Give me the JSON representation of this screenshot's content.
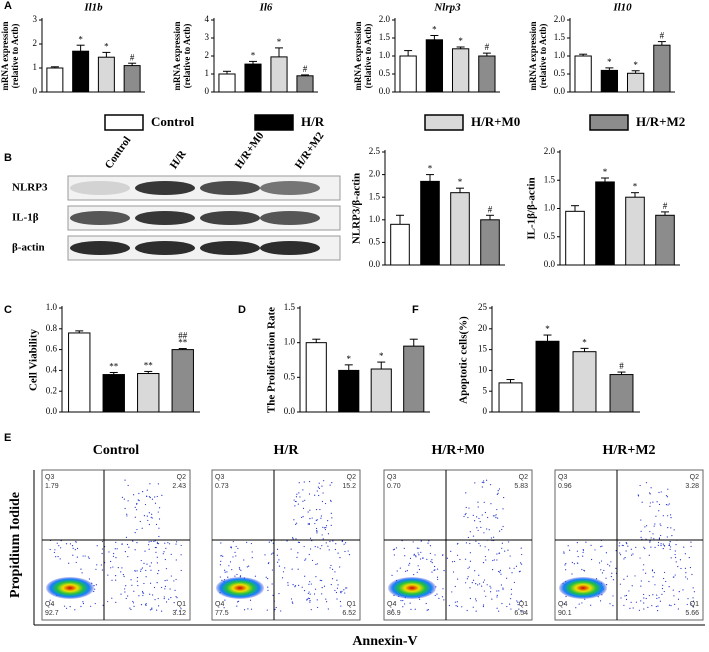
{
  "legend": [
    {
      "name": "Control",
      "color": "#ffffff"
    },
    {
      "name": "H/R",
      "color": "#000000"
    },
    {
      "name": "H/R+M0",
      "color": "#d9d9d9"
    },
    {
      "name": "H/R+M2",
      "color": "#8c8c8c"
    }
  ],
  "chart_data": [
    {
      "type": "bar",
      "panel": "A",
      "title": "Il1b",
      "italic_title": true,
      "ylabel": [
        "mRNA expression",
        "(relative to Actb)"
      ],
      "values": [
        1.0,
        1.7,
        1.45,
        1.1
      ],
      "errors": [
        0.05,
        0.25,
        0.2,
        0.1
      ],
      "significance": [
        [],
        [
          "*"
        ],
        [
          "*"
        ],
        [
          "#"
        ]
      ],
      "ylim": [
        0,
        3
      ],
      "yticks": [
        0,
        1,
        2,
        3
      ]
    },
    {
      "type": "bar",
      "title": "Il6",
      "italic_title": true,
      "ylabel": [
        "mRNA expression",
        "(relative to Actb)"
      ],
      "values": [
        1.0,
        1.55,
        1.95,
        0.9
      ],
      "errors": [
        0.15,
        0.15,
        0.5,
        0.05
      ],
      "significance": [
        [],
        [
          "*"
        ],
        [
          "*"
        ],
        [
          "#"
        ]
      ],
      "ylim": [
        0,
        4
      ],
      "yticks": [
        0,
        1,
        2,
        3,
        4
      ]
    },
    {
      "type": "bar",
      "title": "Nlrp3",
      "italic_title": true,
      "ylabel": [
        "mRNA expression",
        "(relative to Actb)"
      ],
      "values": [
        1.0,
        1.45,
        1.2,
        1.0
      ],
      "errors": [
        0.15,
        0.12,
        0.05,
        0.08
      ],
      "significance": [
        [],
        [
          "*"
        ],
        [
          "*"
        ],
        [
          "#"
        ]
      ],
      "ylim": [
        0,
        2
      ],
      "yticks": [
        {
          "value": 0,
          "label": "0.0"
        },
        {
          "value": 0.5,
          "label": "0.5"
        },
        {
          "value": 1,
          "label": "1.0"
        },
        {
          "value": 1.5,
          "label": "1.5"
        },
        {
          "value": 2,
          "label": "2.0"
        }
      ]
    },
    {
      "type": "bar",
      "title": "Il10",
      "italic_title": true,
      "ylabel": [
        "mRNA expression",
        "(relative to Actb)"
      ],
      "values": [
        1.0,
        0.6,
        0.52,
        1.3
      ],
      "errors": [
        0.05,
        0.07,
        0.07,
        0.1
      ],
      "significance": [
        [],
        [
          "*"
        ],
        [
          "*"
        ],
        [
          "#"
        ]
      ],
      "ylim": [
        0,
        2
      ],
      "yticks": [
        {
          "value": 0,
          "label": "0.0"
        },
        {
          "value": 0.5,
          "label": "0.5"
        },
        {
          "value": 1,
          "label": "1.0"
        },
        {
          "value": 1.5,
          "label": "1.5"
        },
        {
          "value": 2,
          "label": "2.0"
        }
      ]
    },
    {
      "type": "bar",
      "ylabel": [
        "NLRP3/β-actin"
      ],
      "values": [
        0.9,
        1.85,
        1.6,
        1.0
      ],
      "errors": [
        0.2,
        0.15,
        0.1,
        0.1
      ],
      "significance": [
        [],
        [
          "*"
        ],
        [
          "*"
        ],
        [
          "#"
        ]
      ],
      "ylim": [
        0,
        2.5
      ],
      "yticks": [
        {
          "value": 0,
          "label": "0.0"
        },
        {
          "value": 0.5,
          "label": "0.5"
        },
        {
          "value": 1,
          "label": "1.0"
        },
        {
          "value": 1.5,
          "label": "1.5"
        },
        {
          "value": 2,
          "label": "2.0"
        },
        {
          "value": 2.5,
          "label": "2.5"
        }
      ]
    },
    {
      "type": "bar",
      "ylabel": [
        "IL-1β/β-actin"
      ],
      "values": [
        0.95,
        1.47,
        1.2,
        0.88
      ],
      "errors": [
        0.1,
        0.07,
        0.08,
        0.06
      ],
      "significance": [
        [],
        [
          "*"
        ],
        [
          "*"
        ],
        [
          "#"
        ]
      ],
      "ylim": [
        0,
        2
      ],
      "yticks": [
        {
          "value": 0,
          "label": "0.0"
        },
        {
          "value": 0.5,
          "label": "0.5"
        },
        {
          "value": 1,
          "label": "1.0"
        },
        {
          "value": 1.5,
          "label": "1.5"
        },
        {
          "value": 2,
          "label": "2.0"
        }
      ]
    },
    {
      "type": "bar",
      "panel": "C",
      "ylabel": [
        "Cell Viability"
      ],
      "values": [
        0.76,
        0.36,
        0.37,
        0.6
      ],
      "errors": [
        0.02,
        0.02,
        0.02,
        0.01
      ],
      "significance": [
        [],
        [
          "**"
        ],
        [
          "**"
        ],
        [
          "##",
          "**"
        ]
      ],
      "ylim": [
        0,
        1
      ],
      "yticks": [
        {
          "value": 0,
          "label": "0.0"
        },
        {
          "value": 0.2,
          "label": "0.2"
        },
        {
          "value": 0.4,
          "label": "0.4"
        },
        {
          "value": 0.6,
          "label": "0.6"
        },
        {
          "value": 0.8,
          "label": "0.8"
        },
        {
          "value": 1,
          "label": "1.0"
        }
      ]
    },
    {
      "type": "bar",
      "panel": "D",
      "ylabel": [
        "The Proliferation Rate"
      ],
      "values": [
        1.0,
        0.6,
        0.62,
        0.95
      ],
      "errors": [
        0.05,
        0.08,
        0.1,
        0.1
      ],
      "significance": [
        [],
        [
          "*"
        ],
        [
          "*"
        ],
        []
      ],
      "ylim": [
        0,
        1.5
      ],
      "yticks": [
        {
          "value": 0,
          "label": "0.0"
        },
        {
          "value": 0.5,
          "label": "0.5"
        },
        {
          "value": 1,
          "label": "1.0"
        },
        {
          "value": 1.5,
          "label": "1.5"
        }
      ]
    },
    {
      "type": "bar",
      "panel": "F",
      "ylabel": [
        "Apoptotic cells(%)"
      ],
      "values": [
        7,
        17,
        14.5,
        9
      ],
      "errors": [
        0.8,
        1.5,
        0.8,
        0.6
      ],
      "significance": [
        [],
        [
          "*"
        ],
        [
          "*"
        ],
        [
          "#"
        ]
      ],
      "ylim": [
        0,
        25
      ],
      "yticks": [
        0,
        5,
        10,
        15,
        20,
        25
      ]
    }
  ],
  "blot": {
    "panel": "B",
    "lanes": [
      "Control",
      "H/R",
      "H/R+M0",
      "H/R+M2"
    ],
    "rows": [
      "NLRP3",
      "IL-1β",
      "β-actin"
    ]
  },
  "flow": {
    "panel": "E",
    "xlabel": "Annexin-V",
    "ylabel": "Propidium Iodide",
    "plots": [
      {
        "title": "Control",
        "quadrants": [
          {
            "label": "Q3",
            "value": "1.79"
          },
          {
            "label": "Q2",
            "value": "2.43"
          },
          {
            "label": "Q4",
            "value": "92.7"
          },
          {
            "label": "Q1",
            "value": "3.12"
          }
        ]
      },
      {
        "title": "H/R",
        "quadrants": [
          {
            "label": "Q3",
            "value": "0.73"
          },
          {
            "label": "Q2",
            "value": "15.2"
          },
          {
            "label": "Q4",
            "value": "77.5"
          },
          {
            "label": "Q1",
            "value": "6.52"
          }
        ]
      },
      {
        "title": "H/R+M0",
        "quadrants": [
          {
            "label": "Q3",
            "value": "0.70"
          },
          {
            "label": "Q2",
            "value": "5.83"
          },
          {
            "label": "Q4",
            "value": "86.9"
          },
          {
            "label": "Q1",
            "value": "6.54"
          }
        ]
      },
      {
        "title": "H/R+M2",
        "quadrants": [
          {
            "label": "Q3",
            "value": "0.96"
          },
          {
            "label": "Q2",
            "value": "3.28"
          },
          {
            "label": "Q4",
            "value": "90.1"
          },
          {
            "label": "Q1",
            "value": "5.66"
          }
        ]
      }
    ]
  }
}
